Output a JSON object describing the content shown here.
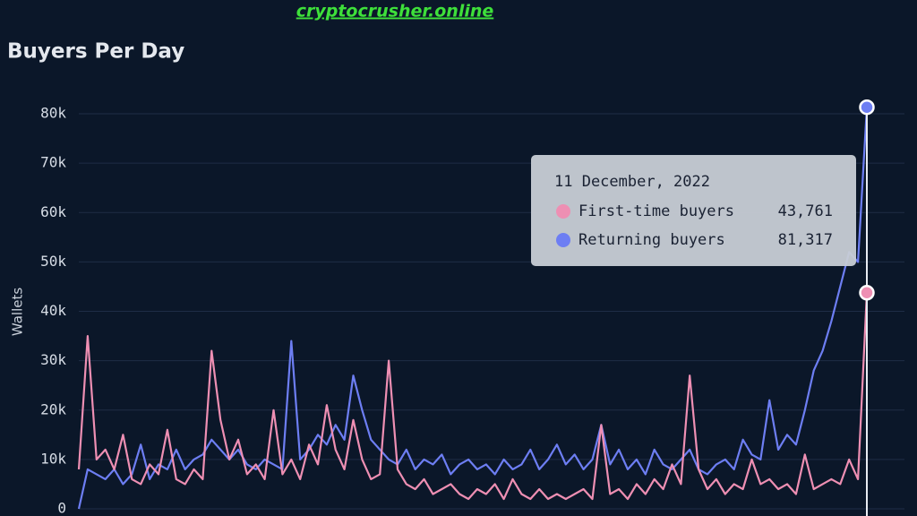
{
  "watermark": "cryptocrusher.online",
  "chart_data": {
    "type": "line",
    "title": "Buyers Per Day",
    "y_label": "Wallets",
    "ylim": [
      0,
      82000
    ],
    "yticks": [
      {
        "value": 0,
        "label": "0"
      },
      {
        "value": 10000,
        "label": "10k"
      },
      {
        "value": 20000,
        "label": "20k"
      },
      {
        "value": 30000,
        "label": "30k"
      },
      {
        "value": 40000,
        "label": "40k"
      },
      {
        "value": 50000,
        "label": "50k"
      },
      {
        "value": 60000,
        "label": "60k"
      },
      {
        "value": 70000,
        "label": "70k"
      },
      {
        "value": 80000,
        "label": "80k"
      }
    ],
    "grid": true,
    "series": [
      {
        "name": "First-time buyers",
        "color": "#ee8fb3",
        "values": [
          8000,
          35000,
          10000,
          12000,
          8000,
          15000,
          6000,
          5000,
          9000,
          7000,
          16000,
          6000,
          5000,
          8000,
          6000,
          32000,
          18000,
          10000,
          14000,
          7000,
          9000,
          6000,
          20000,
          7000,
          10000,
          6000,
          13000,
          9000,
          21000,
          12000,
          8000,
          18000,
          10000,
          6000,
          7000,
          30000,
          8000,
          5000,
          4000,
          6000,
          3000,
          4000,
          5000,
          3000,
          2000,
          4000,
          3000,
          5000,
          2000,
          6000,
          3000,
          2000,
          4000,
          2000,
          3000,
          2000,
          3000,
          4000,
          2000,
          17000,
          3000,
          4000,
          2000,
          5000,
          3000,
          6000,
          4000,
          9000,
          5000,
          27000,
          8000,
          4000,
          6000,
          3000,
          5000,
          4000,
          10000,
          5000,
          6000,
          4000,
          5000,
          3000,
          11000,
          4000,
          5000,
          6000,
          5000,
          10000,
          6000,
          43761
        ]
      },
      {
        "name": "Returning buyers",
        "color": "#6d7ef3",
        "values": [
          0,
          8000,
          7000,
          6000,
          8000,
          5000,
          7000,
          13000,
          6000,
          9000,
          8000,
          12000,
          8000,
          10000,
          11000,
          14000,
          12000,
          10000,
          12000,
          9000,
          8000,
          10000,
          9000,
          8000,
          34000,
          10000,
          12000,
          15000,
          13000,
          17000,
          14000,
          27000,
          20000,
          14000,
          12000,
          10000,
          9000,
          12000,
          8000,
          10000,
          9000,
          11000,
          7000,
          9000,
          10000,
          8000,
          9000,
          7000,
          10000,
          8000,
          9000,
          12000,
          8000,
          10000,
          13000,
          9000,
          11000,
          8000,
          10000,
          17000,
          9000,
          12000,
          8000,
          10000,
          7000,
          12000,
          9000,
          8000,
          10000,
          12000,
          8000,
          7000,
          9000,
          10000,
          8000,
          14000,
          11000,
          10000,
          22000,
          12000,
          15000,
          13000,
          20000,
          28000,
          32000,
          38000,
          45000,
          52000,
          50000,
          81317
        ]
      }
    ],
    "tooltip": {
      "title": "11 December, 2022",
      "values": [
        {
          "value": 43761,
          "label": "43,761"
        },
        {
          "value": 81317,
          "label": "81,317"
        }
      ]
    }
  }
}
